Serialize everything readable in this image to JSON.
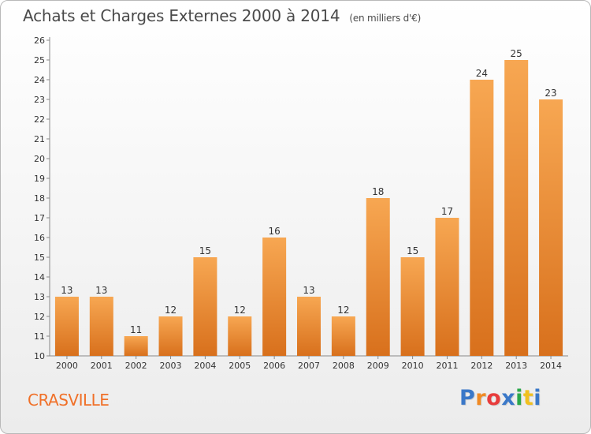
{
  "header": {
    "title": "Achats et Charges Externes 2000 à 2014",
    "unit": "(en milliers d'€)"
  },
  "footer": {
    "commune": "CRASVILLE",
    "logo_letters": [
      "P",
      "r",
      "o",
      "x",
      "i",
      "t",
      "i"
    ],
    "logo_colors": [
      "#3a78c8",
      "#f08a24",
      "#e83c3c",
      "#3a78c8",
      "#2aa84a",
      "#f0c020",
      "#3a78c8"
    ]
  },
  "colors": {
    "bar_light": "#f7a752",
    "bar_dark": "#d8701c",
    "commune": "#f07028"
  },
  "chart_data": {
    "type": "bar",
    "title": "Achats et Charges Externes 2000 à 2014",
    "subtitle": "(en milliers d'€)",
    "categories": [
      "2000",
      "2001",
      "2002",
      "2003",
      "2004",
      "2005",
      "2006",
      "2007",
      "2008",
      "2009",
      "2010",
      "2011",
      "2012",
      "2013",
      "2014"
    ],
    "values": [
      13,
      13,
      11,
      12,
      15,
      12,
      16,
      13,
      12,
      18,
      15,
      17,
      24,
      25,
      23
    ],
    "ylim": [
      10,
      26
    ],
    "yticks": [
      10,
      11,
      12,
      13,
      14,
      15,
      16,
      17,
      18,
      19,
      20,
      21,
      22,
      23,
      24,
      25,
      26
    ],
    "grid": false,
    "data_labels": true
  }
}
